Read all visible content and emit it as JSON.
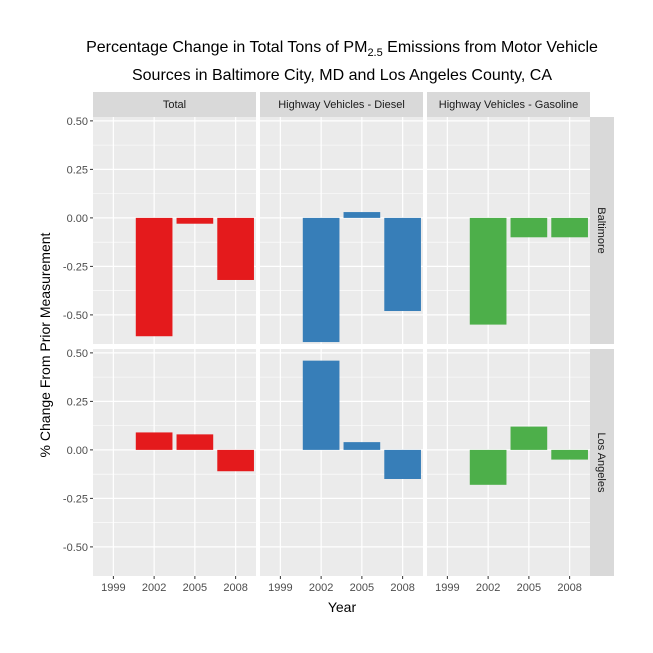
{
  "chart_data": {
    "type": "bar",
    "title_line1_prefix": "Percentage Change in Total Tons of PM",
    "title_line1_sub": "2.5",
    "title_line1_suffix": " Emissions from Motor Vehicle",
    "title_line2": "Sources in Baltimore City, MD and Los Angeles County, CA",
    "xlabel": "Year",
    "ylabel": "% Change From Prior Measurement",
    "categories": [
      "1999",
      "2002",
      "2005",
      "2008"
    ],
    "yticks": [
      0.5,
      0.25,
      0.0,
      -0.25,
      -0.5
    ],
    "ytick_labels": [
      "0.50",
      "0.25",
      "0.00",
      "-0.25",
      "-0.50"
    ],
    "ylim": [
      -0.65,
      0.52
    ],
    "columns": [
      {
        "name": "Total",
        "color": "#E41A1C"
      },
      {
        "name": "Highway Vehicles - Diesel",
        "color": "#377EB8"
      },
      {
        "name": "Highway Vehicles - Gasoline",
        "color": "#4DAF4A"
      }
    ],
    "rows": [
      {
        "name": "Baltimore"
      },
      {
        "name": "Los Angeles"
      }
    ],
    "values": {
      "Baltimore": {
        "Total": [
          null,
          -0.61,
          -0.03,
          -0.32
        ],
        "Highway Vehicles - Diesel": [
          null,
          -0.64,
          0.03,
          -0.48
        ],
        "Highway Vehicles - Gasoline": [
          null,
          -0.55,
          -0.1,
          -0.1
        ]
      },
      "Los Angeles": {
        "Total": [
          null,
          0.09,
          0.08,
          -0.11
        ],
        "Highway Vehicles - Diesel": [
          null,
          0.46,
          0.04,
          -0.15
        ],
        "Highway Vehicles - Gasoline": [
          null,
          -0.18,
          0.12,
          -0.05
        ]
      }
    },
    "grid": true,
    "legend": "none"
  }
}
